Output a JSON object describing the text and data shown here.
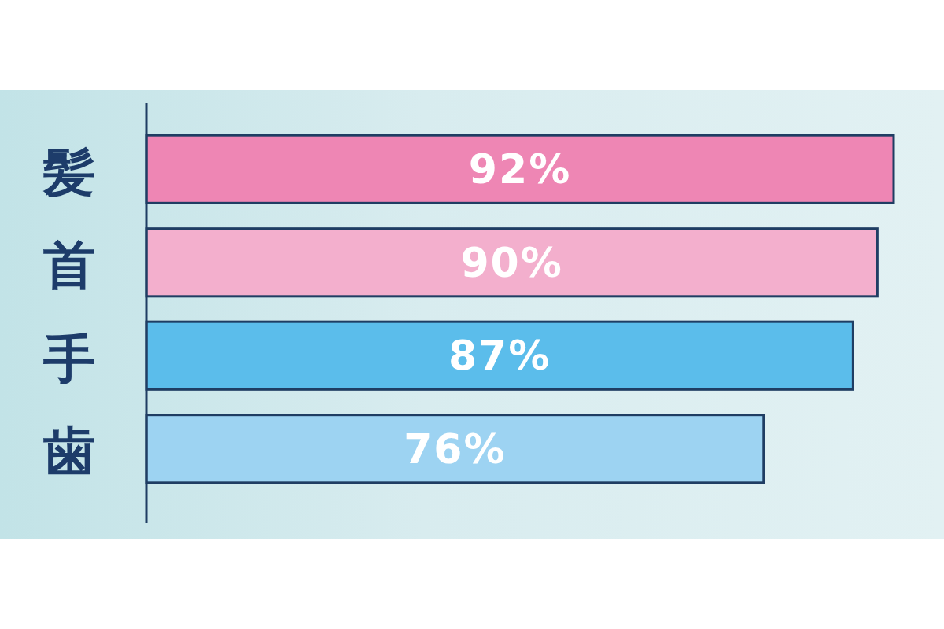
{
  "chart_data": {
    "type": "bar",
    "orientation": "horizontal",
    "categories": [
      "髪",
      "首",
      "手",
      "歯"
    ],
    "values": [
      92,
      90,
      87,
      76
    ],
    "colors": [
      "#ee86b4",
      "#f3afcd",
      "#5bbdeb",
      "#9dd3f2"
    ],
    "value_labels": [
      "92%",
      "90%",
      "87%",
      "76%"
    ],
    "tick_labels": "y"
  }
}
